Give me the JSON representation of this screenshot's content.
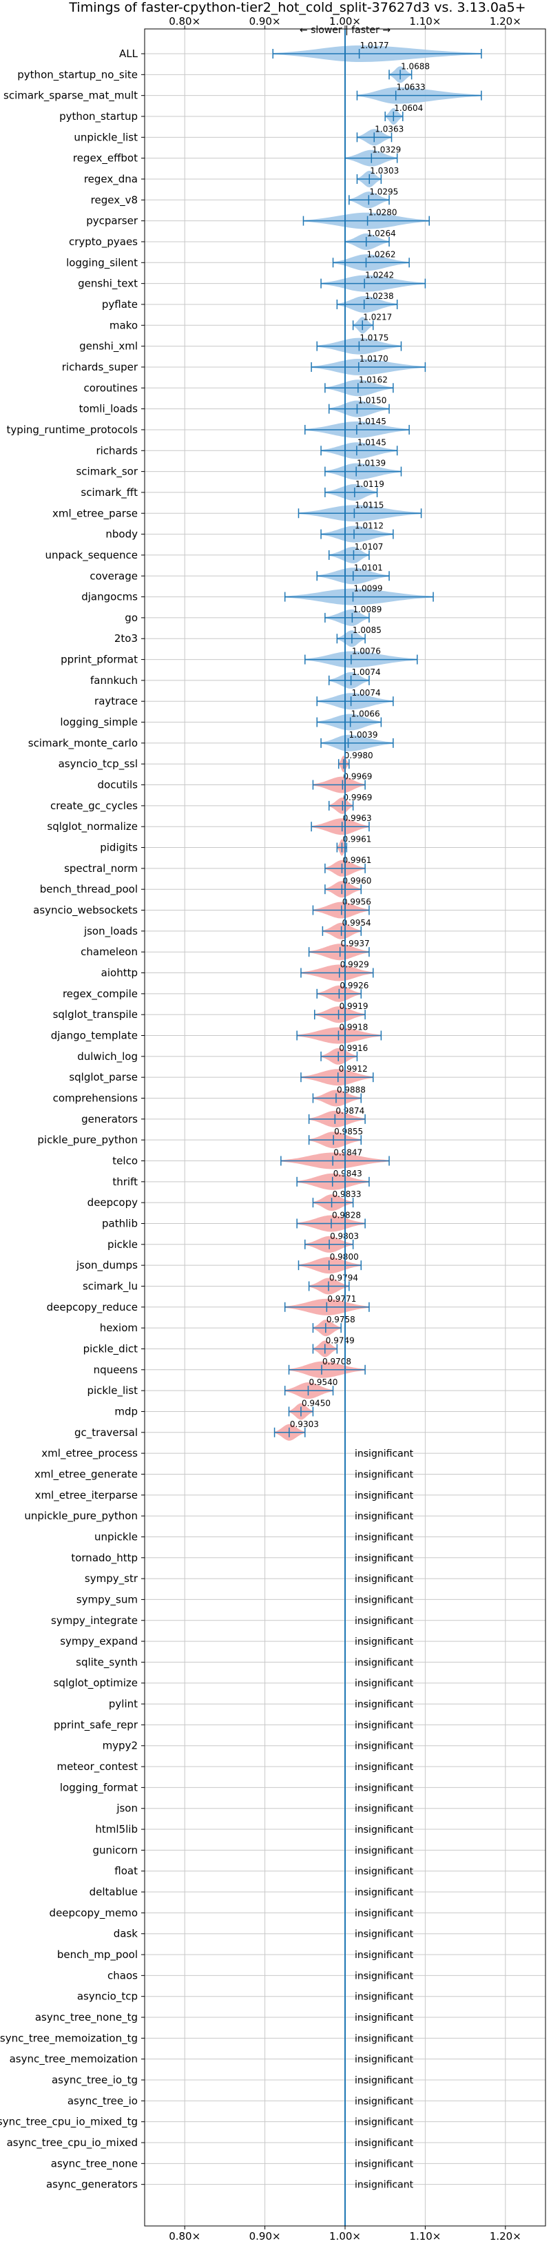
{
  "chart_data": {
    "type": "violin",
    "title": "Timings of faster-cpython-tier2_hot_cold_split-37627d3 vs. 3.13.0a5+",
    "direction_label": "← slower | faster →",
    "xlim": [
      0.75,
      1.25
    ],
    "xticks": [
      0.8,
      0.9,
      1.0,
      1.1,
      1.2
    ],
    "xtick_labels": [
      "0.80×",
      "0.90×",
      "1.00×",
      "1.10×",
      "1.20×"
    ],
    "reference_x": 1.0,
    "colors": {
      "faster": "#9ec5e8",
      "slower": "#f4a3a3",
      "line": "#1f77b4",
      "grid": "#c8c8c8"
    },
    "insignificant_label": "insignificant",
    "significant": [
      {
        "name": "ALL",
        "value": 1.0177,
        "label": "1.0177",
        "lo": 0.91,
        "hi": 1.17
      },
      {
        "name": "python_startup_no_site",
        "value": 1.0688,
        "label": "1.0688",
        "lo": 1.055,
        "hi": 1.083
      },
      {
        "name": "scimark_sparse_mat_mult",
        "value": 1.0633,
        "label": "1.0633",
        "lo": 1.015,
        "hi": 1.17
      },
      {
        "name": "python_startup",
        "value": 1.0604,
        "label": "1.0604",
        "lo": 1.05,
        "hi": 1.072
      },
      {
        "name": "unpickle_list",
        "value": 1.0363,
        "label": "1.0363",
        "lo": 1.015,
        "hi": 1.058
      },
      {
        "name": "regex_effbot",
        "value": 1.0329,
        "label": "1.0329",
        "lo": 1.0,
        "hi": 1.065
      },
      {
        "name": "regex_dna",
        "value": 1.0303,
        "label": "1.0303",
        "lo": 1.015,
        "hi": 1.045
      },
      {
        "name": "regex_v8",
        "value": 1.0295,
        "label": "1.0295",
        "lo": 1.005,
        "hi": 1.055
      },
      {
        "name": "pycparser",
        "value": 1.028,
        "label": "1.0280",
        "lo": 0.948,
        "hi": 1.105
      },
      {
        "name": "crypto_pyaes",
        "value": 1.0264,
        "label": "1.0264",
        "lo": 1.0,
        "hi": 1.055
      },
      {
        "name": "logging_silent",
        "value": 1.0262,
        "label": "1.0262",
        "lo": 0.985,
        "hi": 1.08
      },
      {
        "name": "genshi_text",
        "value": 1.0242,
        "label": "1.0242",
        "lo": 0.97,
        "hi": 1.1
      },
      {
        "name": "pyflate",
        "value": 1.0238,
        "label": "1.0238",
        "lo": 0.99,
        "hi": 1.065
      },
      {
        "name": "mako",
        "value": 1.0217,
        "label": "1.0217",
        "lo": 1.01,
        "hi": 1.035
      },
      {
        "name": "genshi_xml",
        "value": 1.0175,
        "label": "1.0175",
        "lo": 0.965,
        "hi": 1.07
      },
      {
        "name": "richards_super",
        "value": 1.017,
        "label": "1.0170",
        "lo": 0.958,
        "hi": 1.1
      },
      {
        "name": "coroutines",
        "value": 1.0162,
        "label": "1.0162",
        "lo": 0.975,
        "hi": 1.06
      },
      {
        "name": "tomli_loads",
        "value": 1.015,
        "label": "1.0150",
        "lo": 0.98,
        "hi": 1.055
      },
      {
        "name": "typing_runtime_protocols",
        "value": 1.0145,
        "label": "1.0145",
        "lo": 0.95,
        "hi": 1.08
      },
      {
        "name": "richards",
        "value": 1.0145,
        "label": "1.0145",
        "lo": 0.97,
        "hi": 1.065
      },
      {
        "name": "scimark_sor",
        "value": 1.0139,
        "label": "1.0139",
        "lo": 0.975,
        "hi": 1.07
      },
      {
        "name": "scimark_fft",
        "value": 1.0119,
        "label": "1.0119",
        "lo": 0.975,
        "hi": 1.04
      },
      {
        "name": "xml_etree_parse",
        "value": 1.0115,
        "label": "1.0115",
        "lo": 0.942,
        "hi": 1.095
      },
      {
        "name": "nbody",
        "value": 1.0112,
        "label": "1.0112",
        "lo": 0.97,
        "hi": 1.06
      },
      {
        "name": "unpack_sequence",
        "value": 1.0107,
        "label": "1.0107",
        "lo": 0.98,
        "hi": 1.03
      },
      {
        "name": "coverage",
        "value": 1.0101,
        "label": "1.0101",
        "lo": 0.965,
        "hi": 1.055
      },
      {
        "name": "djangocms",
        "value": 1.0099,
        "label": "1.0099",
        "lo": 0.925,
        "hi": 1.11
      },
      {
        "name": "go",
        "value": 1.0089,
        "label": "1.0089",
        "lo": 0.975,
        "hi": 1.03
      },
      {
        "name": "2to3",
        "value": 1.0085,
        "label": "1.0085",
        "lo": 0.99,
        "hi": 1.025
      },
      {
        "name": "pprint_pformat",
        "value": 1.0076,
        "label": "1.0076",
        "lo": 0.95,
        "hi": 1.09
      },
      {
        "name": "fannkuch",
        "value": 1.0074,
        "label": "1.0074",
        "lo": 0.98,
        "hi": 1.03
      },
      {
        "name": "raytrace",
        "value": 1.0074,
        "label": "1.0074",
        "lo": 0.965,
        "hi": 1.06
      },
      {
        "name": "logging_simple",
        "value": 1.0066,
        "label": "1.0066",
        "lo": 0.965,
        "hi": 1.045
      },
      {
        "name": "scimark_monte_carlo",
        "value": 1.0039,
        "label": "1.0039",
        "lo": 0.97,
        "hi": 1.06
      },
      {
        "name": "asyncio_tcp_ssl",
        "value": 0.998,
        "label": "0.9980",
        "lo": 0.992,
        "hi": 1.005
      },
      {
        "name": "docutils",
        "value": 0.9969,
        "label": "0.9969",
        "lo": 0.96,
        "hi": 1.025
      },
      {
        "name": "create_gc_cycles",
        "value": 0.9969,
        "label": "0.9969",
        "lo": 0.98,
        "hi": 1.01
      },
      {
        "name": "sqlglot_normalize",
        "value": 0.9963,
        "label": "0.9963",
        "lo": 0.958,
        "hi": 1.03
      },
      {
        "name": "pidigits",
        "value": 0.9961,
        "label": "0.9961",
        "lo": 0.99,
        "hi": 1.002
      },
      {
        "name": "spectral_norm",
        "value": 0.9961,
        "label": "0.9961",
        "lo": 0.975,
        "hi": 1.025
      },
      {
        "name": "bench_thread_pool",
        "value": 0.996,
        "label": "0.9960",
        "lo": 0.975,
        "hi": 1.02
      },
      {
        "name": "asyncio_websockets",
        "value": 0.9956,
        "label": "0.9956",
        "lo": 0.96,
        "hi": 1.03
      },
      {
        "name": "json_loads",
        "value": 0.9954,
        "label": "0.9954",
        "lo": 0.972,
        "hi": 1.02
      },
      {
        "name": "chameleon",
        "value": 0.9937,
        "label": "0.9937",
        "lo": 0.955,
        "hi": 1.03
      },
      {
        "name": "aiohttp",
        "value": 0.9929,
        "label": "0.9929",
        "lo": 0.945,
        "hi": 1.035
      },
      {
        "name": "regex_compile",
        "value": 0.9926,
        "label": "0.9926",
        "lo": 0.965,
        "hi": 1.02
      },
      {
        "name": "sqlglot_transpile",
        "value": 0.9919,
        "label": "0.9919",
        "lo": 0.962,
        "hi": 1.025
      },
      {
        "name": "django_template",
        "value": 0.9918,
        "label": "0.9918",
        "lo": 0.94,
        "hi": 1.045
      },
      {
        "name": "dulwich_log",
        "value": 0.9916,
        "label": "0.9916",
        "lo": 0.97,
        "hi": 1.015
      },
      {
        "name": "sqlglot_parse",
        "value": 0.9912,
        "label": "0.9912",
        "lo": 0.945,
        "hi": 1.035
      },
      {
        "name": "comprehensions",
        "value": 0.9888,
        "label": "0.9888",
        "lo": 0.96,
        "hi": 1.02
      },
      {
        "name": "generators",
        "value": 0.9874,
        "label": "0.9874",
        "lo": 0.955,
        "hi": 1.025
      },
      {
        "name": "pickle_pure_python",
        "value": 0.9855,
        "label": "0.9855",
        "lo": 0.955,
        "hi": 1.02
      },
      {
        "name": "telco",
        "value": 0.9847,
        "label": "0.9847",
        "lo": 0.92,
        "hi": 1.055
      },
      {
        "name": "thrift",
        "value": 0.9843,
        "label": "0.9843",
        "lo": 0.94,
        "hi": 1.03
      },
      {
        "name": "deepcopy",
        "value": 0.9833,
        "label": "0.9833",
        "lo": 0.96,
        "hi": 1.01
      },
      {
        "name": "pathlib",
        "value": 0.9828,
        "label": "0.9828",
        "lo": 0.94,
        "hi": 1.025
      },
      {
        "name": "pickle",
        "value": 0.9803,
        "label": "0.9803",
        "lo": 0.95,
        "hi": 1.01
      },
      {
        "name": "json_dumps",
        "value": 0.98,
        "label": "0.9800",
        "lo": 0.942,
        "hi": 1.02
      },
      {
        "name": "scimark_lu",
        "value": 0.9794,
        "label": "0.9794",
        "lo": 0.955,
        "hi": 1.005
      },
      {
        "name": "deepcopy_reduce",
        "value": 0.9771,
        "label": "0.9771",
        "lo": 0.925,
        "hi": 1.03
      },
      {
        "name": "hexiom",
        "value": 0.9758,
        "label": "0.9758",
        "lo": 0.96,
        "hi": 0.995
      },
      {
        "name": "pickle_dict",
        "value": 0.9749,
        "label": "0.9749",
        "lo": 0.96,
        "hi": 0.99
      },
      {
        "name": "nqueens",
        "value": 0.9708,
        "label": "0.9708",
        "lo": 0.93,
        "hi": 1.025
      },
      {
        "name": "pickle_list",
        "value": 0.954,
        "label": "0.9540",
        "lo": 0.925,
        "hi": 0.985
      },
      {
        "name": "mdp",
        "value": 0.945,
        "label": "0.9450",
        "lo": 0.93,
        "hi": 0.96
      },
      {
        "name": "gc_traversal",
        "value": 0.9303,
        "label": "0.9303",
        "lo": 0.912,
        "hi": 0.95
      }
    ],
    "insignificant": [
      "xml_etree_process",
      "xml_etree_generate",
      "xml_etree_iterparse",
      "unpickle_pure_python",
      "unpickle",
      "tornado_http",
      "sympy_str",
      "sympy_sum",
      "sympy_integrate",
      "sympy_expand",
      "sqlite_synth",
      "sqlglot_optimize",
      "pylint",
      "pprint_safe_repr",
      "mypy2",
      "meteor_contest",
      "logging_format",
      "json",
      "html5lib",
      "gunicorn",
      "float",
      "deltablue",
      "deepcopy_memo",
      "dask",
      "bench_mp_pool",
      "chaos",
      "asyncio_tcp",
      "async_tree_none_tg",
      "async_tree_memoization_tg",
      "async_tree_memoization",
      "async_tree_io_tg",
      "async_tree_io",
      "async_tree_cpu_io_mixed_tg",
      "async_tree_cpu_io_mixed",
      "async_tree_none",
      "async_generators"
    ]
  }
}
